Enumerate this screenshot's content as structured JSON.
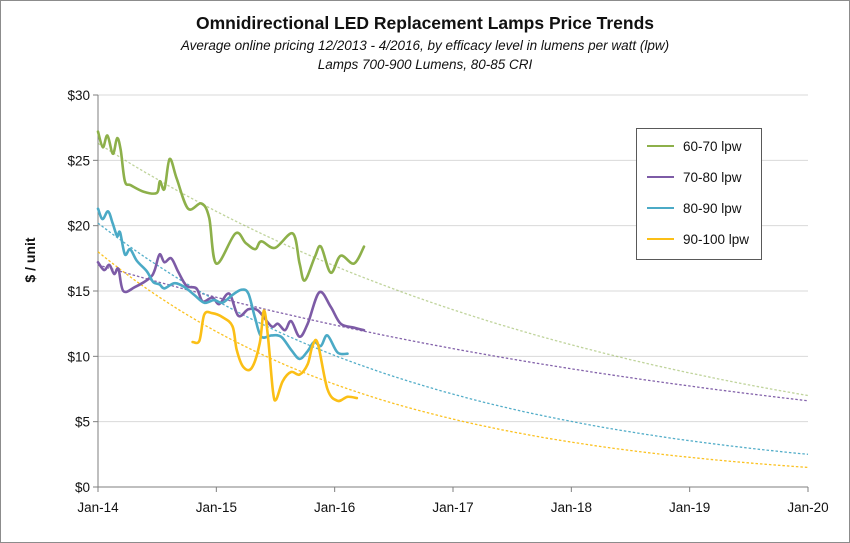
{
  "chart_data": {
    "type": "line",
    "title": "Omnidirectional LED Replacement Lamps Price Trends",
    "subtitle": [
      "Average online pricing 12/2013 - 4/2016, by efficacy level in lumens per watt (lpw)",
      "Lamps 700-900 Lumens, 80-85 CRI"
    ],
    "xlabel": "",
    "ylabel": "$ / unit",
    "x_tick_labels": [
      "Jan-14",
      "Jan-15",
      "Jan-16",
      "Jan-17",
      "Jan-18",
      "Jan-19",
      "Jan-20"
    ],
    "y_tick_labels": [
      "$0",
      "$5",
      "$10",
      "$15",
      "$20",
      "$25",
      "$30"
    ],
    "xlim": [
      "2014-01-01",
      "2020-01-01"
    ],
    "ylim": [
      0,
      30
    ],
    "grid": "horizontal",
    "legend_position": "top-right",
    "series": [
      {
        "name": "60-70 lpw",
        "color": "#8db04a",
        "data": [
          [
            "2014-01-01",
            27.2
          ],
          [
            "2014-01-16",
            26.0
          ],
          [
            "2014-01-30",
            26.9
          ],
          [
            "2014-02-16",
            25.5
          ],
          [
            "2014-03-01",
            26.7
          ],
          [
            "2014-03-12",
            25.8
          ],
          [
            "2014-03-25",
            23.4
          ],
          [
            "2014-04-12",
            23.1
          ],
          [
            "2014-05-22",
            22.6
          ],
          [
            "2014-07-01",
            22.5
          ],
          [
            "2014-07-11",
            23.4
          ],
          [
            "2014-07-25",
            22.8
          ],
          [
            "2014-08-10",
            25.1
          ],
          [
            "2014-09-01",
            23.6
          ],
          [
            "2014-10-06",
            21.3
          ],
          [
            "2014-11-16",
            21.7
          ],
          [
            "2014-12-10",
            20.6
          ],
          [
            "2015-01-01",
            17.1
          ],
          [
            "2015-03-01",
            19.4
          ],
          [
            "2015-04-01",
            18.7
          ],
          [
            "2015-05-01",
            18.2
          ],
          [
            "2015-05-20",
            18.8
          ],
          [
            "2015-07-01",
            18.3
          ],
          [
            "2015-08-25",
            19.4
          ],
          [
            "2015-09-15",
            17.1
          ],
          [
            "2015-10-01",
            15.8
          ],
          [
            "2015-11-01",
            17.6
          ],
          [
            "2015-11-20",
            18.4
          ],
          [
            "2015-12-20",
            16.4
          ],
          [
            "2016-01-20",
            17.7
          ],
          [
            "2016-03-01",
            17.1
          ],
          [
            "2016-04-01",
            18.4
          ]
        ],
        "trend": [
          [
            "2014-01-01",
            26.3
          ],
          [
            "2020-01-01",
            7.0
          ]
        ]
      },
      {
        "name": "70-80 lpw",
        "color": "#7d5ba6",
        "data": [
          [
            "2014-01-01",
            17.2
          ],
          [
            "2014-01-20",
            16.6
          ],
          [
            "2014-02-05",
            17.0
          ],
          [
            "2014-02-20",
            16.3
          ],
          [
            "2014-03-05",
            16.7
          ],
          [
            "2014-03-20",
            15.0
          ],
          [
            "2014-04-25",
            15.3
          ],
          [
            "2014-06-10",
            16.0
          ],
          [
            "2014-06-25",
            16.6
          ],
          [
            "2014-07-10",
            17.8
          ],
          [
            "2014-07-25",
            17.2
          ],
          [
            "2014-08-15",
            17.5
          ],
          [
            "2014-09-05",
            16.5
          ],
          [
            "2014-10-01",
            15.4
          ],
          [
            "2014-11-01",
            15.2
          ],
          [
            "2014-11-20",
            14.2
          ],
          [
            "2014-12-20",
            14.5
          ],
          [
            "2015-01-10",
            14.0
          ],
          [
            "2015-02-10",
            14.8
          ],
          [
            "2015-03-10",
            13.1
          ],
          [
            "2015-04-10",
            13.6
          ],
          [
            "2015-05-10",
            13.5
          ],
          [
            "2015-06-20",
            12.3
          ],
          [
            "2015-07-10",
            12.5
          ],
          [
            "2015-08-01",
            12.0
          ],
          [
            "2015-08-20",
            12.7
          ],
          [
            "2015-09-15",
            11.5
          ],
          [
            "2015-10-10",
            12.5
          ],
          [
            "2015-11-15",
            14.9
          ],
          [
            "2015-12-20",
            13.8
          ],
          [
            "2016-01-20",
            12.5
          ],
          [
            "2016-03-01",
            12.2
          ],
          [
            "2016-04-01",
            12.0
          ]
        ],
        "trend": [
          [
            "2014-01-01",
            17.0
          ],
          [
            "2020-01-01",
            6.6
          ]
        ]
      },
      {
        "name": "80-90 lpw",
        "color": "#4baac6",
        "data": [
          [
            "2014-01-01",
            21.3
          ],
          [
            "2014-01-15",
            20.5
          ],
          [
            "2014-02-01",
            21.1
          ],
          [
            "2014-02-15",
            20.2
          ],
          [
            "2014-03-01",
            19.2
          ],
          [
            "2014-03-10",
            19.5
          ],
          [
            "2014-03-25",
            17.8
          ],
          [
            "2014-04-10",
            18.2
          ],
          [
            "2014-05-01",
            17.3
          ],
          [
            "2014-06-01",
            16.5
          ],
          [
            "2014-06-20",
            15.7
          ],
          [
            "2014-07-10",
            15.5
          ],
          [
            "2014-07-25",
            15.2
          ],
          [
            "2014-08-25",
            15.6
          ],
          [
            "2014-09-25",
            15.3
          ],
          [
            "2014-10-25",
            14.7
          ],
          [
            "2014-11-25",
            14.1
          ],
          [
            "2014-12-25",
            14.3
          ],
          [
            "2015-01-20",
            14.1
          ],
          [
            "2015-02-20",
            14.7
          ],
          [
            "2015-03-20",
            15.1
          ],
          [
            "2015-04-10",
            14.8
          ],
          [
            "2015-05-01",
            12.9
          ],
          [
            "2015-05-20",
            11.5
          ],
          [
            "2015-06-20",
            11.6
          ],
          [
            "2015-07-20",
            11.5
          ],
          [
            "2015-08-20",
            10.5
          ],
          [
            "2015-09-15",
            9.8
          ],
          [
            "2015-10-10",
            10.4
          ],
          [
            "2015-10-30",
            11.1
          ],
          [
            "2015-11-20",
            10.8
          ],
          [
            "2015-12-10",
            11.6
          ],
          [
            "2016-01-10",
            10.3
          ],
          [
            "2016-02-10",
            10.2
          ]
        ],
        "trend": [
          [
            "2014-01-01",
            20.2
          ],
          [
            "2020-01-01",
            2.5
          ]
        ]
      },
      {
        "name": "90-100 lpw",
        "color": "#fbbf16",
        "data": [
          [
            "2014-10-20",
            11.1
          ],
          [
            "2014-11-10",
            11.2
          ],
          [
            "2014-11-25",
            13.2
          ],
          [
            "2014-12-20",
            13.3
          ],
          [
            "2015-01-20",
            13.0
          ],
          [
            "2015-02-20",
            12.3
          ],
          [
            "2015-03-05",
            10.5
          ],
          [
            "2015-03-25",
            9.2
          ],
          [
            "2015-04-20",
            9.1
          ],
          [
            "2015-05-15",
            11.0
          ],
          [
            "2015-05-28",
            13.5
          ],
          [
            "2015-06-10",
            11.4
          ],
          [
            "2015-06-25",
            7.3
          ],
          [
            "2015-07-05",
            6.7
          ],
          [
            "2015-07-25",
            8.1
          ],
          [
            "2015-08-20",
            8.8
          ],
          [
            "2015-09-15",
            8.6
          ],
          [
            "2015-10-10",
            9.4
          ],
          [
            "2015-10-25",
            10.8
          ],
          [
            "2015-11-10",
            11.0
          ],
          [
            "2015-12-10",
            7.5
          ],
          [
            "2016-01-10",
            6.6
          ],
          [
            "2016-02-10",
            6.9
          ],
          [
            "2016-03-10",
            6.8
          ]
        ],
        "trend": [
          [
            "2014-01-01",
            18.0
          ],
          [
            "2020-01-01",
            1.5
          ]
        ]
      }
    ]
  }
}
